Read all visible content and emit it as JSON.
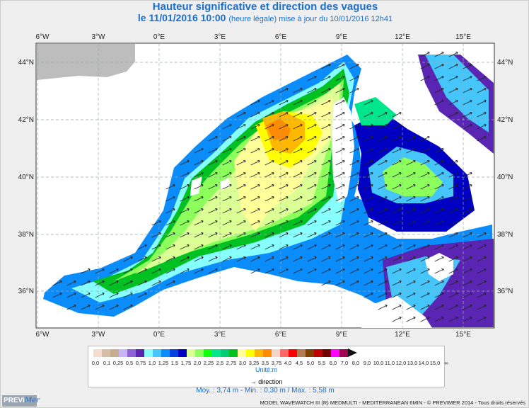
{
  "header": {
    "title": "Hauteur significative et direction des vagues",
    "date": "le 11/01/2016 10:00",
    "subtitle": "(heure légale) mise à jour du 10/01/2016 12h41"
  },
  "map": {
    "lon_labels": [
      "6°W",
      "3°W",
      "0°E",
      "3°E",
      "6°E",
      "9°E",
      "12°E",
      "15°E"
    ],
    "lat_labels": [
      "44°N",
      "42°N",
      "40°N",
      "38°N",
      "36°N"
    ]
  },
  "legend": {
    "colors": [
      "#f3ddd0",
      "#d6bea6",
      "#c9ad91",
      "#c6b5f7",
      "#8d63d6",
      "#5b25b4",
      "#87ffff",
      "#46c5fb",
      "#0b8cfb",
      "#0043de",
      "#0000c2",
      "#dbff94",
      "#8cff5c",
      "#12ff12",
      "#00e68c",
      "#00cc75",
      "#00c022",
      "#ffff99",
      "#ffff00",
      "#ffb800",
      "#ff8c00",
      "#f5d5c8",
      "#ff6666",
      "#ff0000",
      "#b47a52",
      "#804000",
      "#c00000",
      "#700000",
      "#ff00ff",
      "#a00050"
    ],
    "ticks": [
      "0,0",
      "0,1",
      "0,25",
      "0,5",
      "0,75",
      "1,0",
      "1,25",
      "1,5",
      "1,75",
      "2,0",
      "2,25",
      "2,5",
      "2,75",
      "3,0",
      "3,25",
      "3,5",
      "3,75",
      "4,0",
      "4,5",
      "5,0",
      "5,5",
      "6,0",
      "7,0",
      "8,0",
      "9,0",
      "10,0",
      "11,0",
      "12,0",
      "13,0",
      "14,0",
      "15,0",
      "∞"
    ],
    "unit": "Unité:m",
    "direction": "→ direction"
  },
  "stats": "Moy. : 3,74 m   -   Min. : 0,30 m / Max. : 5,58 m",
  "footer": {
    "logo": "PREViMer",
    "credit": "MODEL WAVEWATCH III (R) MEDMULTI - MEDITERRANEAN 6MIN - © PREVIMER 2014 - Tous droits réservés"
  }
}
